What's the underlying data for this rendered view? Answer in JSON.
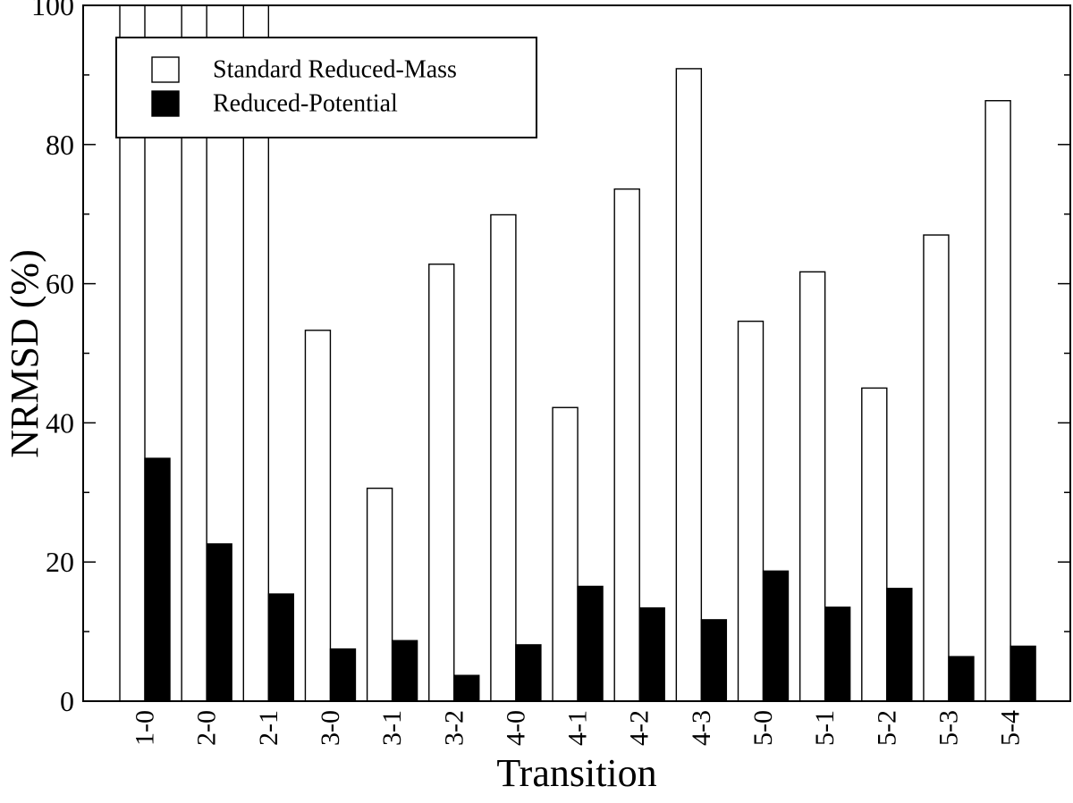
{
  "chart_data": {
    "type": "bar",
    "title": "",
    "xlabel": "Transition",
    "ylabel": "NRMSD (%)",
    "ylim": [
      0,
      100
    ],
    "yticks": [
      0,
      20,
      40,
      60,
      80,
      100
    ],
    "grid": false,
    "legend_position": "top-left",
    "categories": [
      "1-0",
      "2-0",
      "2-1",
      "3-0",
      "3-1",
      "3-2",
      "4-0",
      "4-1",
      "4-2",
      "4-3",
      "5-0",
      "5-1",
      "5-2",
      "5-3",
      "5-4"
    ],
    "series": [
      {
        "name": "Standard Reduced-Mass",
        "color": "#ffffff",
        "values": [
          100,
          100,
          100,
          53.3,
          30.6,
          62.8,
          69.9,
          42.2,
          73.6,
          90.9,
          54.6,
          61.7,
          45.0,
          67.0,
          86.3
        ]
      },
      {
        "name": "Reduced-Potential",
        "color": "#000000",
        "values": [
          34.9,
          22.6,
          15.4,
          7.5,
          8.7,
          3.7,
          8.1,
          16.5,
          13.4,
          11.7,
          18.7,
          13.5,
          16.2,
          6.4,
          7.9
        ]
      }
    ]
  }
}
